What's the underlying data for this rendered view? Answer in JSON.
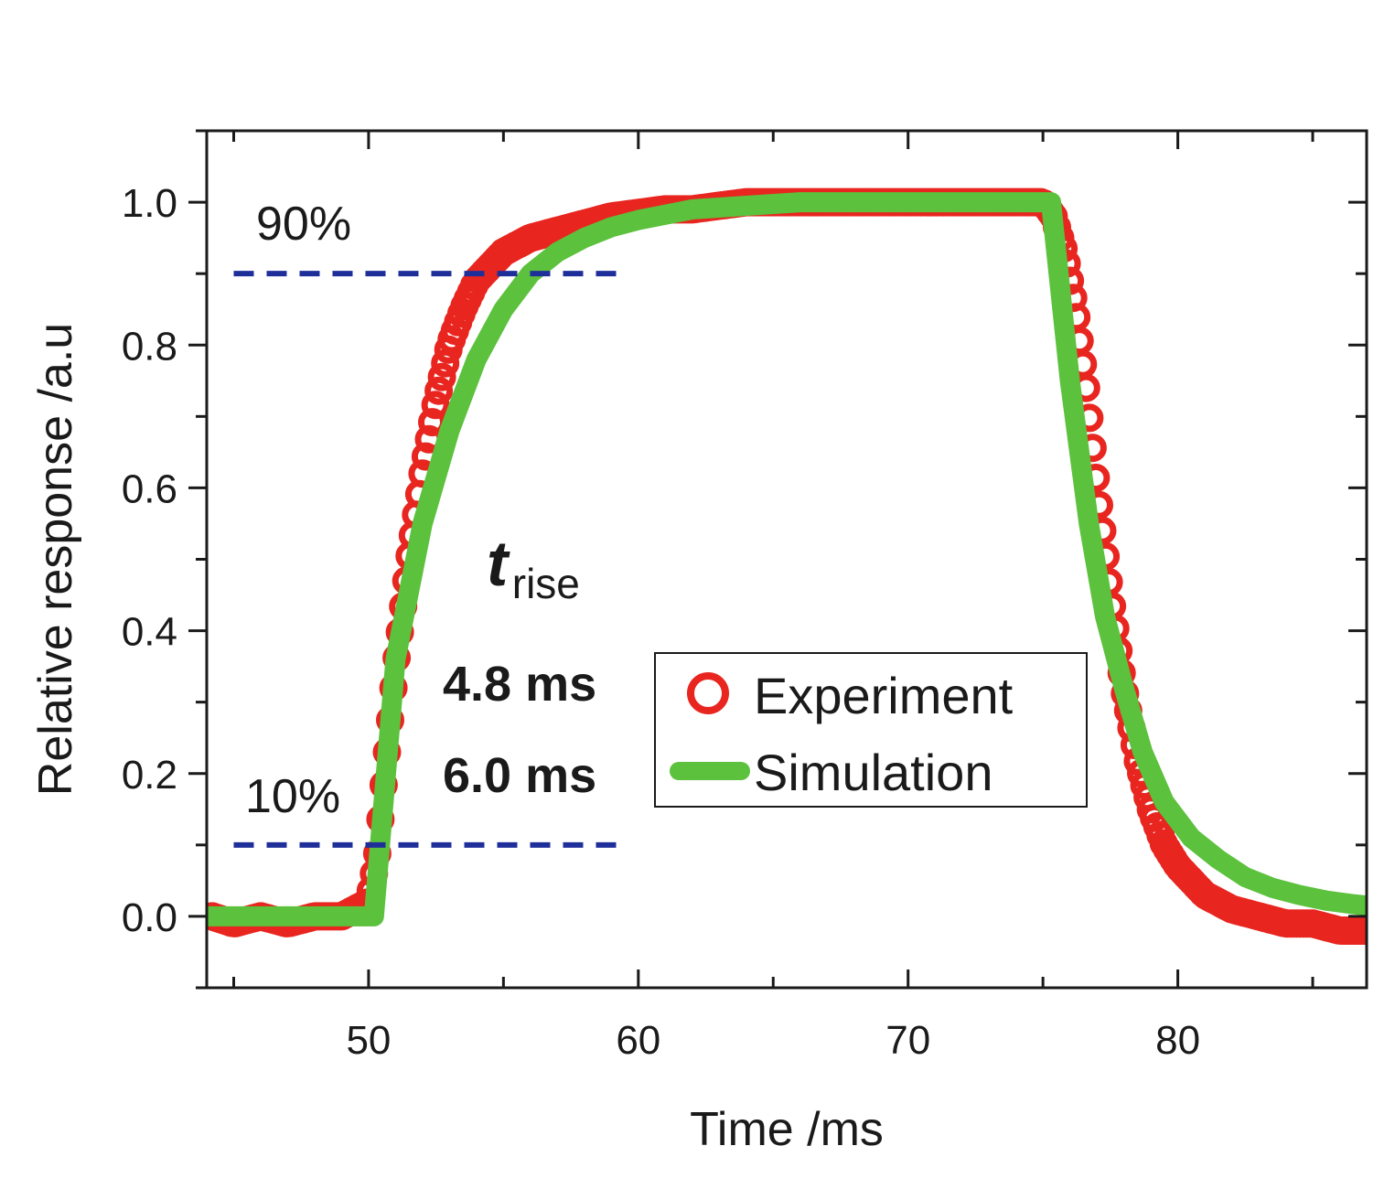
{
  "chart_data": {
    "type": "line",
    "xlabel": "Time /ms",
    "ylabel": "Relative response /a.u",
    "xlim": [
      44,
      87
    ],
    "ylim": [
      -0.1,
      1.1
    ],
    "x_ticks": [
      "50",
      "60",
      "70",
      "80"
    ],
    "y_ticks": [
      "0.0",
      "0.2",
      "0.4",
      "0.6",
      "0.8",
      "1.0"
    ],
    "x_tick_values": [
      50,
      60,
      70,
      80
    ],
    "y_tick_values": [
      0.0,
      0.2,
      0.4,
      0.6,
      0.8,
      1.0
    ],
    "grid": false,
    "legend_position": "center-right",
    "colors": {
      "experiment": "#e8251f",
      "simulation": "#5cc13d",
      "threshold": "#1f2f9a",
      "axis": "#1a1a1a"
    },
    "thresholds": [
      {
        "label": "90%",
        "y": 0.9,
        "x_range": [
          45,
          59.3
        ]
      },
      {
        "label": "10%",
        "y": 0.1,
        "x_range": [
          45,
          59.3
        ]
      }
    ],
    "annotations": {
      "t_symbol": "t",
      "t_subscript": "rise",
      "value_experiment": "4.8 ms",
      "value_simulation": "6.0 ms"
    },
    "series": [
      {
        "name": "Experiment",
        "style": "open-circle",
        "x": [
          44.2,
          45,
          46,
          47,
          48,
          49,
          49.5,
          50,
          50.3,
          50.6,
          51,
          51.5,
          52,
          52.5,
          53,
          53.5,
          54,
          54.5,
          55,
          56,
          57,
          58,
          59,
          60,
          61,
          62,
          63,
          64,
          65,
          66,
          67,
          68,
          69,
          70,
          71,
          72,
          73,
          74,
          75,
          75.4,
          75.8,
          76.2,
          76.6,
          77,
          77.5,
          78,
          78.5,
          79,
          79.5,
          80,
          81,
          82,
          83,
          84,
          85,
          86,
          87
        ],
        "y": [
          0.0,
          -0.01,
          0.0,
          -0.01,
          0.0,
          0.0,
          0.01,
          0.02,
          0.08,
          0.2,
          0.35,
          0.5,
          0.62,
          0.72,
          0.8,
          0.85,
          0.89,
          0.91,
          0.93,
          0.95,
          0.96,
          0.97,
          0.98,
          0.985,
          0.99,
          0.99,
          0.995,
          1.0,
          1.0,
          1.0,
          1.0,
          1.0,
          1.0,
          1.0,
          1.0,
          1.0,
          1.0,
          1.0,
          1.0,
          0.98,
          0.93,
          0.85,
          0.74,
          0.6,
          0.45,
          0.32,
          0.22,
          0.15,
          0.1,
          0.07,
          0.03,
          0.01,
          0.0,
          -0.01,
          -0.01,
          -0.02,
          -0.02
        ]
      },
      {
        "name": "Simulation",
        "style": "thick-line",
        "x": [
          44,
          50.2,
          51,
          52,
          53,
          54,
          55,
          56,
          57,
          58,
          59,
          60,
          62,
          64,
          66,
          68,
          70,
          72,
          74,
          75.3,
          76,
          76.7,
          77.3,
          78,
          78.7,
          79.5,
          80.5,
          81.5,
          82.5,
          83.5,
          84.5,
          85.5,
          86.5,
          87
        ],
        "y": [
          0.0,
          0.0,
          0.36,
          0.55,
          0.68,
          0.78,
          0.85,
          0.9,
          0.93,
          0.95,
          0.965,
          0.975,
          0.99,
          0.995,
          1.0,
          1.0,
          1.0,
          1.0,
          1.0,
          1.0,
          0.75,
          0.55,
          0.42,
          0.32,
          0.23,
          0.16,
          0.11,
          0.08,
          0.055,
          0.04,
          0.03,
          0.022,
          0.017,
          0.015
        ]
      }
    ]
  }
}
